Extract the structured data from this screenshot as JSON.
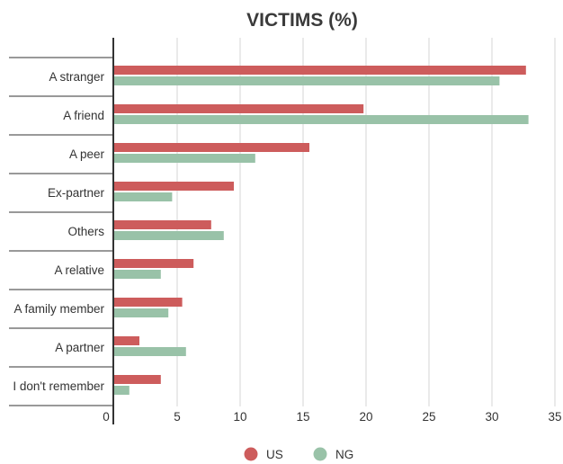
{
  "chart_data": {
    "type": "bar",
    "orientation": "horizontal",
    "title": "VICTIMS (%)",
    "xlabel": "",
    "ylabel": "",
    "xlim": [
      0,
      35
    ],
    "xticks": [
      0,
      5,
      10,
      15,
      20,
      25,
      30,
      35
    ],
    "grid": true,
    "legend_position": "bottom",
    "categories": [
      "A stranger",
      "A friend",
      "A peer",
      "Ex-partner",
      "Others",
      "A relative",
      "A family member",
      "A partner",
      "I don't remember"
    ],
    "series": [
      {
        "name": "US",
        "color": "#cd5c5c",
        "values": [
          32.7,
          19.8,
          15.5,
          9.5,
          7.7,
          6.3,
          5.4,
          2.0,
          3.7
        ]
      },
      {
        "name": "NG",
        "color": "#99c2a8",
        "values": [
          30.6,
          32.9,
          11.2,
          4.6,
          8.7,
          3.7,
          4.3,
          5.7,
          1.2
        ]
      }
    ]
  }
}
